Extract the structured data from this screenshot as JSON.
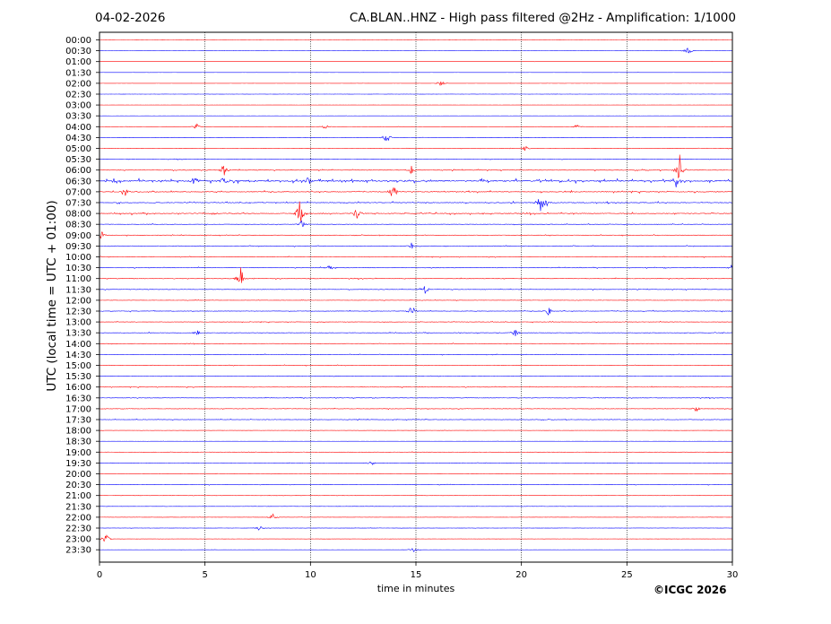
{
  "header": {
    "date": "04-02-2026",
    "title": "CA.BLAN..HNZ - High pass filtered @2Hz - Amplification: 1/1000"
  },
  "footer": {
    "copyright": "©ICGC 2026"
  },
  "colors": {
    "trace_a": "#ff0000",
    "trace_b": "#0000ff",
    "grid": "#000000"
  },
  "chart_data": {
    "type": "line",
    "xlabel": "time in minutes",
    "ylabel": "UTC (local time = UTC + 01:00)",
    "xlim": [
      0,
      30
    ],
    "x_ticks": [
      0,
      5,
      10,
      15,
      20,
      25,
      30
    ],
    "x_tick_labels": [
      "0",
      "5",
      "10",
      "15",
      "20",
      "25",
      "30"
    ],
    "grid": "vertical dotted at each 5 minutes",
    "row_labels": [
      "00:00",
      "00:30",
      "01:00",
      "01:30",
      "02:00",
      "02:30",
      "03:00",
      "03:30",
      "04:00",
      "04:30",
      "05:00",
      "05:30",
      "06:00",
      "06:30",
      "07:00",
      "07:30",
      "08:00",
      "08:30",
      "09:00",
      "09:30",
      "10:00",
      "10:30",
      "11:00",
      "11:30",
      "12:00",
      "12:30",
      "13:00",
      "13:30",
      "14:00",
      "14:30",
      "15:00",
      "15:30",
      "16:00",
      "16:30",
      "17:00",
      "17:30",
      "18:00",
      "18:30",
      "19:00",
      "19:30",
      "20:00",
      "20:30",
      "21:00",
      "21:30",
      "22:00",
      "22:30",
      "23:00",
      "23:30"
    ],
    "row_activity": [
      0.05,
      0.06,
      0.05,
      0.1,
      0.06,
      0.06,
      0.05,
      0.1,
      0.12,
      0.15,
      0.2,
      0.25,
      0.4,
      0.9,
      0.55,
      0.5,
      0.55,
      0.3,
      0.3,
      0.35,
      0.3,
      0.35,
      0.35,
      0.3,
      0.2,
      0.35,
      0.3,
      0.3,
      0.25,
      0.25,
      0.25,
      0.25,
      0.3,
      0.3,
      0.3,
      0.3,
      0.15,
      0.1,
      0.2,
      0.2,
      0.15,
      0.2,
      0.15,
      0.15,
      0.15,
      0.15,
      0.1,
      0.1
    ],
    "events": [
      {
        "row": 1,
        "minute": 27.9,
        "amplitude": 0.6
      },
      {
        "row": 4,
        "minute": 16.2,
        "amplitude": 0.5
      },
      {
        "row": 8,
        "minute": 4.6,
        "amplitude": 0.5
      },
      {
        "row": 8,
        "minute": 10.7,
        "amplitude": 0.4
      },
      {
        "row": 8,
        "minute": 22.6,
        "amplitude": 0.4
      },
      {
        "row": 9,
        "minute": 13.6,
        "amplitude": 1.0
      },
      {
        "row": 10,
        "minute": 20.2,
        "amplitude": 0.5
      },
      {
        "row": 12,
        "minute": 5.9,
        "amplitude": 1.0
      },
      {
        "row": 12,
        "minute": 14.8,
        "amplitude": 0.8
      },
      {
        "row": 12,
        "minute": 27.5,
        "amplitude": 2.2
      },
      {
        "row": 13,
        "minute": 4.5,
        "amplitude": 0.8
      },
      {
        "row": 13,
        "minute": 5.9,
        "amplitude": 1.0
      },
      {
        "row": 13,
        "minute": 9.9,
        "amplitude": 0.8
      },
      {
        "row": 13,
        "minute": 27.3,
        "amplitude": 1.2
      },
      {
        "row": 14,
        "minute": 1.2,
        "amplitude": 0.7
      },
      {
        "row": 14,
        "minute": 13.9,
        "amplitude": 1.5
      },
      {
        "row": 15,
        "minute": 20.9,
        "amplitude": 1.3
      },
      {
        "row": 15,
        "minute": 21.1,
        "amplitude": 1.0
      },
      {
        "row": 16,
        "minute": 9.5,
        "amplitude": 2.0
      },
      {
        "row": 16,
        "minute": 12.2,
        "amplitude": 1.0
      },
      {
        "row": 17,
        "minute": 9.6,
        "amplitude": 0.7
      },
      {
        "row": 18,
        "minute": 0.1,
        "amplitude": 0.6
      },
      {
        "row": 19,
        "minute": 14.8,
        "amplitude": 0.6
      },
      {
        "row": 21,
        "minute": 10.9,
        "amplitude": 0.5
      },
      {
        "row": 21,
        "minute": 30.0,
        "amplitude": 0.5
      },
      {
        "row": 22,
        "minute": 6.7,
        "amplitude": 1.6
      },
      {
        "row": 23,
        "minute": 15.4,
        "amplitude": 0.9
      },
      {
        "row": 25,
        "minute": 14.8,
        "amplitude": 0.9
      },
      {
        "row": 25,
        "minute": 21.3,
        "amplitude": 0.7
      },
      {
        "row": 27,
        "minute": 19.7,
        "amplitude": 0.6
      },
      {
        "row": 27,
        "minute": 4.6,
        "amplitude": 0.5
      },
      {
        "row": 34,
        "minute": 28.3,
        "amplitude": 0.5
      },
      {
        "row": 39,
        "minute": 12.9,
        "amplitude": 0.5
      },
      {
        "row": 44,
        "minute": 8.2,
        "amplitude": 0.6
      },
      {
        "row": 45,
        "minute": 7.6,
        "amplitude": 0.5
      },
      {
        "row": 46,
        "minute": 0.3,
        "amplitude": 0.8
      },
      {
        "row": 47,
        "minute": 14.9,
        "amplitude": 0.5
      }
    ]
  }
}
